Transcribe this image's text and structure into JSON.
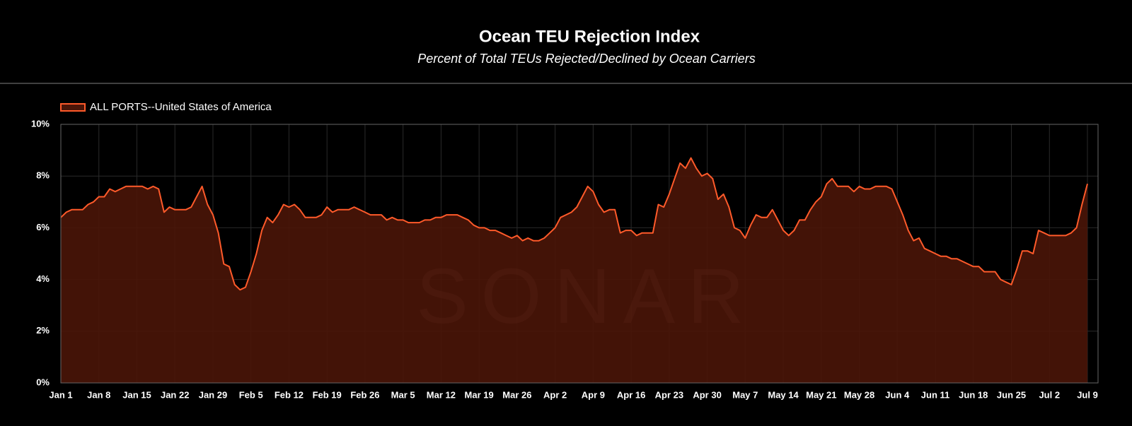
{
  "chart_data": {
    "type": "area",
    "title": "Ocean TEU Rejection Index",
    "subtitle": "Percent of Total TEUs Rejected/Declined by Ocean Carriers",
    "watermark": "SONAR",
    "legend_position": "top-left",
    "grid": true,
    "ylim": [
      0,
      10
    ],
    "yticks": [
      {
        "value": 0,
        "label": "0%"
      },
      {
        "value": 2,
        "label": "2%"
      },
      {
        "value": 4,
        "label": "4%"
      },
      {
        "value": 6,
        "label": "6%"
      },
      {
        "value": 8,
        "label": "8%"
      },
      {
        "value": 10,
        "label": "10%"
      }
    ],
    "categories": [
      "Jan 1",
      null,
      null,
      null,
      null,
      null,
      null,
      "Jan 8",
      null,
      null,
      null,
      null,
      null,
      null,
      "Jan 15",
      null,
      null,
      null,
      null,
      null,
      null,
      "Jan 22",
      null,
      null,
      null,
      null,
      null,
      null,
      "Jan 29",
      null,
      null,
      null,
      null,
      null,
      null,
      "Feb 5",
      null,
      null,
      null,
      null,
      null,
      null,
      "Feb 12",
      null,
      null,
      null,
      null,
      null,
      null,
      "Feb 19",
      null,
      null,
      null,
      null,
      null,
      null,
      "Feb 26",
      null,
      null,
      null,
      null,
      null,
      null,
      "Mar 5",
      null,
      null,
      null,
      null,
      null,
      null,
      "Mar 12",
      null,
      null,
      null,
      null,
      null,
      null,
      "Mar 19",
      null,
      null,
      null,
      null,
      null,
      null,
      "Mar 26",
      null,
      null,
      null,
      null,
      null,
      null,
      "Apr 2",
      null,
      null,
      null,
      null,
      null,
      null,
      "Apr 9",
      null,
      null,
      null,
      null,
      null,
      null,
      "Apr 16",
      null,
      null,
      null,
      null,
      null,
      null,
      "Apr 23",
      null,
      null,
      null,
      null,
      null,
      null,
      "Apr 30",
      null,
      null,
      null,
      null,
      null,
      null,
      "May 7",
      null,
      null,
      null,
      null,
      null,
      null,
      "May 14",
      null,
      null,
      null,
      null,
      null,
      null,
      "May 21",
      null,
      null,
      null,
      null,
      null,
      null,
      "May 28",
      null,
      null,
      null,
      null,
      null,
      null,
      "Jun 4",
      null,
      null,
      null,
      null,
      null,
      null,
      "Jun 11",
      null,
      null,
      null,
      null,
      null,
      null,
      "Jun 18",
      null,
      null,
      null,
      null,
      null,
      null,
      "Jun 25",
      null,
      null,
      null,
      null,
      null,
      null,
      "Jul 2",
      null,
      null,
      null,
      null,
      null,
      null,
      "Jul 9"
    ],
    "series": [
      {
        "name": "ALL PORTS--United States of America",
        "color": "#ff5a2a",
        "fill": "#4a1508",
        "values": [
          6.4,
          6.6,
          6.7,
          6.7,
          6.7,
          6.9,
          7.0,
          7.2,
          7.2,
          7.5,
          7.4,
          7.5,
          7.6,
          7.6,
          7.6,
          7.6,
          7.5,
          7.6,
          7.5,
          6.6,
          6.8,
          6.7,
          6.7,
          6.7,
          6.8,
          7.2,
          7.6,
          6.9,
          6.5,
          5.8,
          4.6,
          4.5,
          3.8,
          3.6,
          3.7,
          4.3,
          5.0,
          5.9,
          6.4,
          6.2,
          6.5,
          6.9,
          6.8,
          6.9,
          6.7,
          6.4,
          6.4,
          6.4,
          6.5,
          6.8,
          6.6,
          6.7,
          6.7,
          6.7,
          6.8,
          6.7,
          6.6,
          6.5,
          6.5,
          6.5,
          6.3,
          6.4,
          6.3,
          6.3,
          6.2,
          6.2,
          6.2,
          6.3,
          6.3,
          6.4,
          6.4,
          6.5,
          6.5,
          6.5,
          6.4,
          6.3,
          6.1,
          6.0,
          6.0,
          5.9,
          5.9,
          5.8,
          5.7,
          5.6,
          5.7,
          5.5,
          5.6,
          5.5,
          5.5,
          5.6,
          5.8,
          6.0,
          6.4,
          6.5,
          6.6,
          6.8,
          7.2,
          7.6,
          7.4,
          6.9,
          6.6,
          6.7,
          6.7,
          5.8,
          5.9,
          5.9,
          5.7,
          5.8,
          5.8,
          5.8,
          6.9,
          6.8,
          7.3,
          7.9,
          8.5,
          8.3,
          8.7,
          8.3,
          8.0,
          8.1,
          7.9,
          7.1,
          7.3,
          6.8,
          6.0,
          5.9,
          5.6,
          6.1,
          6.5,
          6.4,
          6.4,
          6.7,
          6.3,
          5.9,
          5.7,
          5.9,
          6.3,
          6.3,
          6.7,
          7.0,
          7.2,
          7.7,
          7.9,
          7.6,
          7.6,
          7.6,
          7.4,
          7.6,
          7.5,
          7.5,
          7.6,
          7.6,
          7.6,
          7.5,
          7.0,
          6.5,
          5.9,
          5.5,
          5.6,
          5.2,
          5.1,
          5.0,
          4.9,
          4.9,
          4.8,
          4.8,
          4.7,
          4.6,
          4.5,
          4.5,
          4.3,
          4.3,
          4.3,
          4.0,
          3.9,
          3.8,
          4.4,
          5.1,
          5.1,
          5.0,
          5.9,
          5.8,
          5.7,
          5.7,
          5.7,
          5.7,
          5.8,
          6.0,
          6.9,
          7.7
        ]
      }
    ]
  }
}
